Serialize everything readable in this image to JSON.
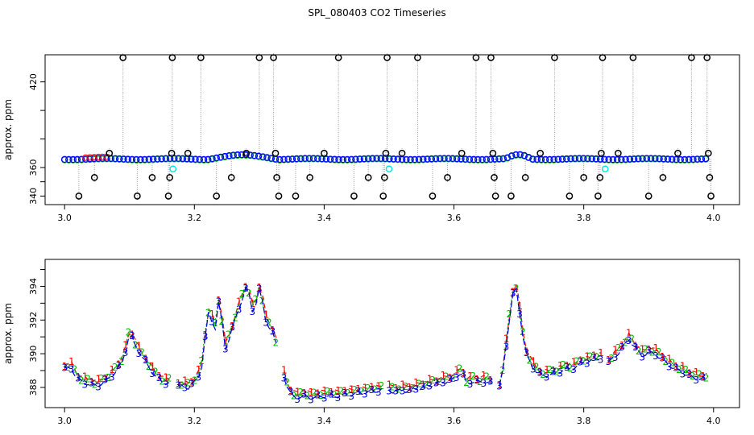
{
  "title": "SPL_080403  CO2 Timeseries",
  "chart_data": [
    {
      "type": "scatter",
      "ylabel": "approx. ppm",
      "xlim": [
        2.97,
        4.04
      ],
      "ylim": [
        334,
        439
      ],
      "xticks": [
        "3.0",
        "3.2",
        "3.4",
        "3.6",
        "3.8",
        "4.0"
      ],
      "yticks": [
        "340",
        "360",
        "420"
      ],
      "ytick_values": [
        340,
        350,
        360,
        380,
        400,
        420,
        440
      ],
      "ytick_labeled": [
        340,
        360,
        420
      ],
      "baseline": 366,
      "colors": {
        "black": "#000000",
        "red": "#ff0000",
        "green": "#00cc00",
        "blue": "#0000ff",
        "cyan": "#00e5ee"
      },
      "baseline_series": [
        {
          "name": "1",
          "color": "red"
        },
        {
          "name": "2",
          "color": "green"
        },
        {
          "name": "3",
          "color": "blue"
        }
      ],
      "cyan_points": [
        {
          "x": 3.167,
          "y": 359
        },
        {
          "x": 3.5,
          "y": 359
        },
        {
          "x": 3.833,
          "y": 359
        }
      ],
      "outliers": [
        {
          "x": 3.022,
          "y": 340
        },
        {
          "x": 3.046,
          "y": 353
        },
        {
          "x": 3.069,
          "y": 370
        },
        {
          "x": 3.09,
          "y": 437
        },
        {
          "x": 3.112,
          "y": 340
        },
        {
          "x": 3.135,
          "y": 353
        },
        {
          "x": 3.16,
          "y": 340
        },
        {
          "x": 3.162,
          "y": 353
        },
        {
          "x": 3.165,
          "y": 370
        },
        {
          "x": 3.166,
          "y": 437
        },
        {
          "x": 3.19,
          "y": 370
        },
        {
          "x": 3.21,
          "y": 437
        },
        {
          "x": 3.234,
          "y": 340
        },
        {
          "x": 3.257,
          "y": 353
        },
        {
          "x": 3.28,
          "y": 370
        },
        {
          "x": 3.3,
          "y": 437
        },
        {
          "x": 3.322,
          "y": 437
        },
        {
          "x": 3.325,
          "y": 370
        },
        {
          "x": 3.327,
          "y": 353
        },
        {
          "x": 3.33,
          "y": 340
        },
        {
          "x": 3.356,
          "y": 340
        },
        {
          "x": 3.378,
          "y": 353
        },
        {
          "x": 3.4,
          "y": 370
        },
        {
          "x": 3.422,
          "y": 437
        },
        {
          "x": 3.446,
          "y": 340
        },
        {
          "x": 3.468,
          "y": 353
        },
        {
          "x": 3.491,
          "y": 340
        },
        {
          "x": 3.493,
          "y": 353
        },
        {
          "x": 3.495,
          "y": 370
        },
        {
          "x": 3.497,
          "y": 437
        },
        {
          "x": 3.52,
          "y": 370
        },
        {
          "x": 3.544,
          "y": 437
        },
        {
          "x": 3.567,
          "y": 340
        },
        {
          "x": 3.59,
          "y": 353
        },
        {
          "x": 3.612,
          "y": 370
        },
        {
          "x": 3.634,
          "y": 437
        },
        {
          "x": 3.657,
          "y": 437
        },
        {
          "x": 3.66,
          "y": 370
        },
        {
          "x": 3.662,
          "y": 353
        },
        {
          "x": 3.664,
          "y": 340
        },
        {
          "x": 3.688,
          "y": 340
        },
        {
          "x": 3.71,
          "y": 353
        },
        {
          "x": 3.733,
          "y": 370
        },
        {
          "x": 3.755,
          "y": 437
        },
        {
          "x": 3.778,
          "y": 340
        },
        {
          "x": 3.8,
          "y": 353
        },
        {
          "x": 3.822,
          "y": 340
        },
        {
          "x": 3.825,
          "y": 353
        },
        {
          "x": 3.827,
          "y": 370
        },
        {
          "x": 3.829,
          "y": 437
        },
        {
          "x": 3.853,
          "y": 370
        },
        {
          "x": 3.876,
          "y": 437
        },
        {
          "x": 3.9,
          "y": 340
        },
        {
          "x": 3.922,
          "y": 353
        },
        {
          "x": 3.945,
          "y": 370
        },
        {
          "x": 3.966,
          "y": 437
        },
        {
          "x": 3.99,
          "y": 437
        },
        {
          "x": 3.992,
          "y": 370
        },
        {
          "x": 3.994,
          "y": 353
        },
        {
          "x": 3.996,
          "y": 340
        }
      ]
    },
    {
      "type": "line",
      "ylabel": "approx. ppm",
      "xlim": [
        2.97,
        4.04
      ],
      "ylim": [
        386.8,
        395.6
      ],
      "xticks": [
        "3.0",
        "3.2",
        "3.4",
        "3.6",
        "3.8",
        "4.0"
      ],
      "yticks": [
        "388",
        "390",
        "392",
        "394"
      ],
      "colors": {
        "1": "#ff0000",
        "2": "#00bb00",
        "3": "#0000dd"
      },
      "series": [
        {
          "name": "1",
          "color": "#ff0000",
          "dash": "6,4"
        },
        {
          "name": "2",
          "color": "#00bb00",
          "dash": "2,3"
        },
        {
          "name": "3",
          "color": "#0000dd",
          "dash": "8,3"
        }
      ],
      "segments": [
        {
          "x0": 3.0,
          "x1": 3.165
        },
        {
          "x0": 3.175,
          "x1": 3.328
        },
        {
          "x0": 3.338,
          "x1": 3.49
        },
        {
          "x0": 3.5,
          "x1": 3.66
        },
        {
          "x0": 3.67,
          "x1": 3.828
        },
        {
          "x0": 3.838,
          "x1": 3.99
        }
      ],
      "profile": [
        [
          3.0,
          389.2
        ],
        [
          3.01,
          389.3
        ],
        [
          3.02,
          388.6
        ],
        [
          3.03,
          388.4
        ],
        [
          3.04,
          388.3
        ],
        [
          3.05,
          388.2
        ],
        [
          3.06,
          388.4
        ],
        [
          3.07,
          388.7
        ],
        [
          3.08,
          389.1
        ],
        [
          3.09,
          389.7
        ],
        [
          3.1,
          391.3
        ],
        [
          3.105,
          391.0
        ],
        [
          3.11,
          390.5
        ],
        [
          3.12,
          389.9
        ],
        [
          3.13,
          389.3
        ],
        [
          3.14,
          388.8
        ],
        [
          3.15,
          388.4
        ],
        [
          3.165,
          388.4
        ],
        [
          3.175,
          388.2
        ],
        [
          3.19,
          388.1
        ],
        [
          3.2,
          388.4
        ],
        [
          3.21,
          389.0
        ],
        [
          3.215,
          390.5
        ],
        [
          3.22,
          392.3
        ],
        [
          3.225,
          392.8
        ],
        [
          3.23,
          391.0
        ],
        [
          3.235,
          392.5
        ],
        [
          3.24,
          393.8
        ],
        [
          3.245,
          390.3
        ],
        [
          3.25,
          390.6
        ],
        [
          3.26,
          391.8
        ],
        [
          3.27,
          393.0
        ],
        [
          3.28,
          394.0
        ],
        [
          3.285,
          393.6
        ],
        [
          3.29,
          392.6
        ],
        [
          3.295,
          393.1
        ],
        [
          3.3,
          393.9
        ],
        [
          3.305,
          393.2
        ],
        [
          3.31,
          392.1
        ],
        [
          3.315,
          391.7
        ],
        [
          3.32,
          391.4
        ],
        [
          3.325,
          390.8
        ],
        [
          3.33,
          390.3
        ],
        [
          3.34,
          388.4
        ],
        [
          3.35,
          387.6
        ],
        [
          3.36,
          387.5
        ],
        [
          3.37,
          387.6
        ],
        [
          3.38,
          387.5
        ],
        [
          3.4,
          387.6
        ],
        [
          3.42,
          387.6
        ],
        [
          3.44,
          387.7
        ],
        [
          3.46,
          387.8
        ],
        [
          3.48,
          387.9
        ],
        [
          3.49,
          388.0
        ],
        [
          3.5,
          387.9
        ],
        [
          3.52,
          387.9
        ],
        [
          3.54,
          388.0
        ],
        [
          3.56,
          388.2
        ],
        [
          3.58,
          388.4
        ],
        [
          3.6,
          388.6
        ],
        [
          3.61,
          389.0
        ],
        [
          3.615,
          388.8
        ],
        [
          3.62,
          388.3
        ],
        [
          3.63,
          388.5
        ],
        [
          3.64,
          388.4
        ],
        [
          3.65,
          388.5
        ],
        [
          3.66,
          388.3
        ],
        [
          3.67,
          388.1
        ],
        [
          3.675,
          389.0
        ],
        [
          3.68,
          390.5
        ],
        [
          3.685,
          392.0
        ],
        [
          3.69,
          393.5
        ],
        [
          3.695,
          394.2
        ],
        [
          3.7,
          392.9
        ],
        [
          3.705,
          391.5
        ],
        [
          3.71,
          390.2
        ],
        [
          3.72,
          389.4
        ],
        [
          3.73,
          388.9
        ],
        [
          3.74,
          388.8
        ],
        [
          3.75,
          388.9
        ],
        [
          3.76,
          389.0
        ],
        [
          3.77,
          389.2
        ],
        [
          3.78,
          389.2
        ],
        [
          3.79,
          389.4
        ],
        [
          3.8,
          389.6
        ],
        [
          3.81,
          389.7
        ],
        [
          3.828,
          389.9
        ],
        [
          3.838,
          389.6
        ],
        [
          3.85,
          390.0
        ],
        [
          3.86,
          390.5
        ],
        [
          3.87,
          391.0
        ],
        [
          3.88,
          390.4
        ],
        [
          3.89,
          390.0
        ],
        [
          3.9,
          390.2
        ],
        [
          3.91,
          390.1
        ],
        [
          3.92,
          389.8
        ],
        [
          3.93,
          389.5
        ],
        [
          3.94,
          389.2
        ],
        [
          3.95,
          389.1
        ],
        [
          3.96,
          388.8
        ],
        [
          3.97,
          388.7
        ],
        [
          3.98,
          388.6
        ],
        [
          3.99,
          388.6
        ]
      ]
    }
  ]
}
